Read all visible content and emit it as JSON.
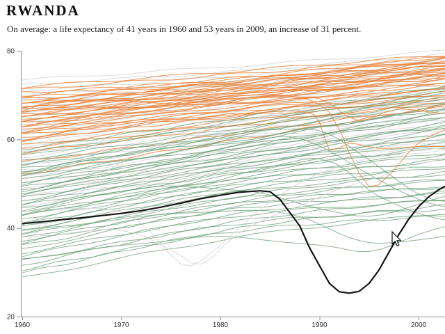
{
  "chart_data": {
    "type": "line",
    "title": "RWANDA",
    "subtitle": "On average: a life expectancy of 41 years in 1960 and 53 years in 2009, an increase of 31 percent.",
    "x_ticks": [
      1960,
      1970,
      1980,
      1990,
      2000
    ],
    "y_ticks": [
      20,
      40,
      60,
      80
    ],
    "xlim": [
      1960,
      2002.7
    ],
    "ylim": [
      20,
      80
    ],
    "grid": false,
    "legend": "none",
    "axis_color": "#8c8c8c",
    "highlight": {
      "name": "Rwanda",
      "color": "#141414",
      "summary": {
        "value_1960": 41,
        "value_2009": 53,
        "increase_percent": 31
      },
      "points": [
        [
          1960,
          41.0
        ],
        [
          1962,
          41.4
        ],
        [
          1964,
          41.9
        ],
        [
          1966,
          42.3
        ],
        [
          1968,
          42.8
        ],
        [
          1970,
          43.3
        ],
        [
          1972,
          43.9
        ],
        [
          1974,
          44.7
        ],
        [
          1976,
          45.6
        ],
        [
          1978,
          46.6
        ],
        [
          1980,
          47.4
        ],
        [
          1982,
          48.1
        ],
        [
          1984,
          48.4
        ],
        [
          1985,
          48.2
        ],
        [
          1986,
          46.5
        ],
        [
          1987,
          43.5
        ],
        [
          1988,
          40.5
        ],
        [
          1989,
          35.5
        ],
        [
          1990,
          31.5
        ],
        [
          1991,
          27.5
        ],
        [
          1992,
          25.6
        ],
        [
          1993,
          25.3
        ],
        [
          1994,
          25.7
        ],
        [
          1995,
          27.5
        ],
        [
          1996,
          30.5
        ],
        [
          1997,
          34.5
        ],
        [
          1998,
          38.5
        ],
        [
          1999,
          42.0
        ],
        [
          2000,
          44.8
        ],
        [
          2001,
          47.0
        ],
        [
          2002,
          48.6
        ],
        [
          2003,
          49.8
        ],
        [
          2004,
          50.8
        ]
      ]
    },
    "background_series": {
      "colors": {
        "orange": "#e8813a",
        "green": "#63996e",
        "gray": "#d9d9d9"
      },
      "control_years": [
        1960,
        1982,
        2004
      ],
      "orange": [
        [
          71.8,
          75.5,
          79.3
        ],
        [
          71.2,
          74.8,
          78.8
        ],
        [
          70.6,
          73.4,
          78.3
        ],
        [
          69.9,
          74.0,
          79.0
        ],
        [
          69.5,
          73.0,
          77.9
        ],
        [
          69.1,
          72.2,
          77.4
        ],
        [
          68.8,
          73.6,
          78.1
        ],
        [
          68.4,
          72.8,
          76.9
        ],
        [
          68.1,
          71.6,
          76.1
        ],
        [
          67.9,
          73.2,
          78.6
        ],
        [
          67.6,
          71.2,
          75.4
        ],
        [
          67.3,
          72.5,
          77.7
        ],
        [
          67.0,
          72.0,
          76.6
        ],
        [
          66.8,
          70.4,
          74.4
        ],
        [
          66.5,
          71.8,
          77.1
        ],
        [
          66.2,
          70.8,
          75.7
        ],
        [
          66.0,
          71.4,
          76.4
        ],
        [
          65.7,
          70.0,
          75.9
        ],
        [
          65.4,
          70.6,
          74.7
        ],
        [
          65.1,
          69.6,
          75.1
        ],
        [
          64.9,
          70.2,
          72.4
        ],
        [
          64.6,
          69.9,
          76.0
        ],
        [
          64.3,
          69.0,
          73.7
        ],
        [
          64.0,
          69.4,
          74.1
        ],
        [
          63.7,
          68.6,
          74.9
        ],
        [
          63.4,
          68.2,
          72.7
        ],
        [
          63.0,
          68.9,
          74.4
        ],
        [
          62.6,
          67.6,
          73.1
        ],
        [
          62.2,
          68.0,
          71.4
        ],
        [
          61.8,
          67.0,
          72.1
        ],
        [
          61.4,
          66.4,
          70.4
        ],
        [
          61.0,
          66.8,
          71.7
        ],
        [
          60.5,
          65.8,
          70.9
        ],
        [
          60.0,
          65.2,
          69.4
        ],
        [
          59.4,
          66.0,
          70.0
        ],
        [
          58.7,
          64.4,
          69.7
        ],
        [
          58.1,
          63.6,
          68.4
        ],
        [
          56.9,
          63.0,
          68.9
        ],
        [
          54.8,
          61.5,
          67.7
        ],
        [
          52.1,
          60.0,
          68.1
        ]
      ],
      "green": [
        [
          57.8,
          65.0,
          72.6
        ],
        [
          57.0,
          63.5,
          71.2
        ],
        [
          56.2,
          64.2,
          71.9
        ],
        [
          55.3,
          62.6,
          70.3
        ],
        [
          54.6,
          61.4,
          68.8
        ],
        [
          54.0,
          62.0,
          70.8
        ],
        [
          53.4,
          60.2,
          67.3
        ],
        [
          52.8,
          61.0,
          69.9
        ],
        [
          52.2,
          59.4,
          68.3
        ],
        [
          51.6,
          58.6,
          65.4
        ],
        [
          51.0,
          59.8,
          67.6
        ],
        [
          50.4,
          57.8,
          66.4
        ],
        [
          49.8,
          58.2,
          66.9
        ],
        [
          49.2,
          56.6,
          63.4
        ],
        [
          48.6,
          57.4,
          65.7
        ],
        [
          48.0,
          55.8,
          64.4
        ],
        [
          47.4,
          56.2,
          63.9
        ],
        [
          46.8,
          54.6,
          60.4
        ],
        [
          46.2,
          55.4,
          62.7
        ],
        [
          45.6,
          53.8,
          61.4
        ],
        [
          45.0,
          54.2,
          61.9
        ],
        [
          44.4,
          52.6,
          58.4
        ],
        [
          43.8,
          53.0,
          59.9
        ],
        [
          43.2,
          51.4,
          57.4
        ],
        [
          42.6,
          52.2,
          58.9
        ],
        [
          42.0,
          50.6,
          55.4
        ],
        [
          41.4,
          51.0,
          56.9
        ],
        [
          40.8,
          49.4,
          54.4
        ],
        [
          40.2,
          49.8,
          55.9
        ],
        [
          39.6,
          48.2,
          52.4
        ],
        [
          39.0,
          48.6,
          53.9
        ],
        [
          38.4,
          46.8,
          50.8
        ],
        [
          37.8,
          47.2,
          52.9
        ],
        [
          37.2,
          45.6,
          49.4
        ],
        [
          36.6,
          46.0,
          51.4
        ],
        [
          36.0,
          44.4,
          47.9
        ],
        [
          35.2,
          44.8,
          49.9
        ],
        [
          34.4,
          42.8,
          46.4
        ],
        [
          33.6,
          43.2,
          48.4
        ],
        [
          32.6,
          41.0,
          44.4
        ],
        [
          31.6,
          41.6,
          46.9
        ],
        [
          30.6,
          39.4,
          42.9
        ],
        [
          29.8,
          40.0,
          45.4
        ],
        [
          28.7,
          38.0,
          43.7
        ]
      ],
      "gray": [
        [
          73.4,
          76.6,
          80.2
        ],
        [
          72.4,
          75.4,
          79.6
        ],
        [
          71.0,
          74.4,
          78.4
        ],
        [
          70.1,
          73.1,
          77.6
        ],
        [
          69.0,
          72.4,
          76.8
        ],
        [
          68.0,
          71.5,
          76.2
        ],
        [
          67.0,
          70.7,
          75.6
        ],
        [
          66.0,
          70.0,
          74.6
        ],
        [
          65.0,
          69.2,
          74.0
        ],
        [
          64.0,
          68.4,
          73.2
        ],
        [
          63.0,
          67.7,
          72.4
        ],
        [
          62.0,
          67.0,
          71.6
        ],
        [
          61.0,
          66.1,
          70.7
        ],
        [
          60.0,
          65.4,
          70.1
        ],
        [
          59.0,
          64.5,
          69.2
        ],
        [
          58.0,
          63.9,
          68.6
        ],
        [
          57.0,
          63.1,
          67.7
        ],
        [
          56.0,
          62.2,
          66.9
        ],
        [
          55.0,
          61.4,
          66.2
        ],
        [
          54.0,
          60.7,
          65.4
        ],
        [
          53.0,
          59.9,
          64.7
        ],
        [
          52.0,
          59.1,
          63.9
        ],
        [
          51.0,
          58.2,
          62.9
        ],
        [
          50.0,
          57.5,
          62.2
        ],
        [
          49.0,
          56.6,
          61.4
        ],
        [
          47.9,
          55.8,
          60.4
        ],
        [
          46.9,
          54.9,
          59.7
        ],
        [
          45.9,
          54.0,
          58.9
        ],
        [
          44.9,
          53.2,
          57.9
        ]
      ],
      "specials": [
        {
          "c": "orange",
          "p": [
            [
              1960,
              61.6
            ],
            [
              1970,
              66.5
            ],
            [
              1980,
              68.8
            ],
            [
              1987,
              69.8
            ],
            [
              1991,
              66.0
            ],
            [
              1993,
              57.0
            ],
            [
              1995,
              49.5
            ],
            [
              1997,
              52.0
            ],
            [
              2000,
              59.0
            ],
            [
              2004,
              63.5
            ]
          ]
        },
        {
          "c": "orange",
          "p": [
            [
              1960,
              59.8
            ],
            [
              1970,
              63.5
            ],
            [
              1980,
              65.0
            ],
            [
              1988,
              66.5
            ],
            [
              1990,
              64.0
            ],
            [
              1991,
              57.5
            ],
            [
              1993,
              59.0
            ],
            [
              1996,
              58.0
            ],
            [
              2000,
              58.5
            ],
            [
              2004,
              58.0
            ]
          ]
        },
        {
          "c": "orange",
          "p": [
            [
              1960,
              66.3
            ],
            [
              1965,
              69.0
            ],
            [
              1975,
              68.2
            ],
            [
              1985,
              68.6
            ],
            [
              1990,
              69.2
            ],
            [
              1994,
              64.2
            ],
            [
              1998,
              66.8
            ],
            [
              2004,
              65.5
            ]
          ]
        },
        {
          "c": "green",
          "p": [
            [
              1960,
              52.4
            ],
            [
              1975,
              58.5
            ],
            [
              1988,
              62.5
            ],
            [
              1994,
              57.0
            ],
            [
              2000,
              47.5
            ],
            [
              2004,
              46.0
            ]
          ]
        },
        {
          "c": "green",
          "p": [
            [
              1960,
              48.3
            ],
            [
              1975,
              55.0
            ],
            [
              1987,
              60.5
            ],
            [
              1995,
              52.0
            ],
            [
              2001,
              45.5
            ],
            [
              2004,
              44.8
            ]
          ]
        },
        {
          "c": "green",
          "p": [
            [
              1960,
              42.9
            ],
            [
              1978,
              50.0
            ],
            [
              1990,
              55.5
            ],
            [
              1996,
              47.0
            ],
            [
              2002,
              42.0
            ],
            [
              2004,
              41.5
            ]
          ]
        },
        {
          "c": "green",
          "p": [
            [
              1960,
              39.3
            ],
            [
              1972,
              42.5
            ],
            [
              1982,
              44.0
            ],
            [
              1988,
              42.5
            ],
            [
              1993,
              38.0
            ],
            [
              1996,
              36.5
            ],
            [
              2000,
              37.2
            ],
            [
              2004,
              38.8
            ]
          ]
        },
        {
          "c": "green",
          "p": [
            [
              1960,
              33.0
            ],
            [
              1970,
              36.0
            ],
            [
              1980,
              38.0
            ],
            [
              1990,
              36.0
            ],
            [
              1995,
              34.8
            ],
            [
              2000,
              38.5
            ],
            [
              2004,
              41.0
            ]
          ]
        },
        {
          "c": "green",
          "p": [
            [
              1960,
              44.0
            ],
            [
              1972,
              49.0
            ],
            [
              1982,
              48.5
            ],
            [
              1990,
              44.5
            ],
            [
              1995,
              42.5
            ],
            [
              2000,
              45.5
            ],
            [
              2004,
              48.0
            ]
          ]
        },
        {
          "c": "gray",
          "p": [
            [
              1960,
              43.6
            ],
            [
              1968,
              44.5
            ],
            [
              1972,
              41.0
            ],
            [
              1975,
              34.0
            ],
            [
              1977,
              31.5
            ],
            [
              1980,
              36.0
            ],
            [
              1985,
              46.0
            ],
            [
              1992,
              54.0
            ],
            [
              2000,
              57.5
            ],
            [
              2004,
              58.5
            ]
          ]
        },
        {
          "c": "gray",
          "p": [
            [
              1960,
              37.8
            ],
            [
              1970,
              39.5
            ],
            [
              1975,
              35.0
            ],
            [
              1978,
              31.8
            ],
            [
              1982,
              39.0
            ],
            [
              1990,
              47.0
            ],
            [
              1998,
              53.0
            ],
            [
              2004,
              56.5
            ]
          ]
        },
        {
          "c": "gray",
          "p": [
            [
              1960,
              36.5
            ],
            [
              1963,
              42.0
            ],
            [
              1970,
              55.0
            ],
            [
              1980,
              63.0
            ],
            [
              1990,
              67.5
            ],
            [
              2004,
              71.5
            ]
          ]
        }
      ]
    },
    "cursor": {
      "x": 564,
      "y": 333
    }
  }
}
